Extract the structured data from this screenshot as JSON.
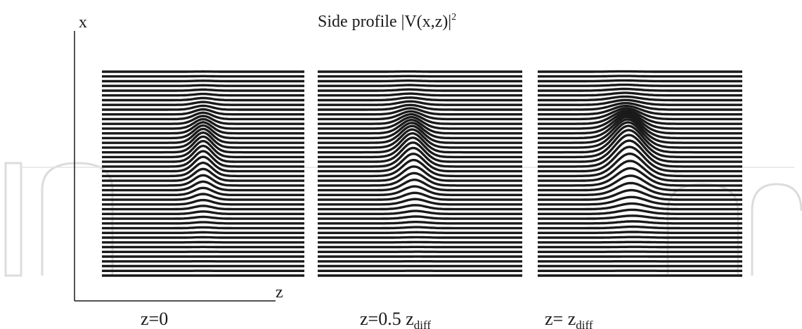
{
  "figure": {
    "title": "Side profile |V(x,z)|",
    "title_superscript": "2",
    "axis_x_label": "x",
    "axis_z_label": "z",
    "panels": [
      {
        "id": "panel-1",
        "caption": "z=0",
        "caption_sub": ""
      },
      {
        "id": "panel-2",
        "caption": "z=0.5 z",
        "caption_sub": "diff"
      },
      {
        "id": "panel-3",
        "caption": "z= z",
        "caption_sub": "diff"
      }
    ],
    "colors": {
      "ink": "#1a1a1a",
      "watermark": "#d9d9d9",
      "background": "#ffffff"
    }
  }
}
